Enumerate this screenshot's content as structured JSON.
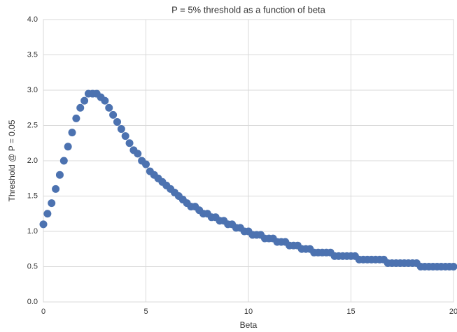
{
  "chart_data": {
    "type": "scatter",
    "title": "P = 5% threshold as a function of beta",
    "x_label": "Beta",
    "y_label": "Threshold @ P = 0.05",
    "color": "#4c72b0",
    "grid": true,
    "x": [
      0,
      0.2,
      0.4,
      0.6,
      0.8,
      1,
      1.2,
      1.4,
      1.6,
      1.8,
      2,
      2.2,
      2.4,
      2.6,
      2.8,
      3,
      3.2,
      3.4,
      3.6,
      3.8,
      4,
      4.2,
      4.4,
      4.6,
      4.8,
      5,
      5.2,
      5.4,
      5.6,
      5.8,
      6,
      6.2,
      6.4,
      6.6,
      6.8,
      7,
      7.2,
      7.4,
      7.6,
      7.8,
      8,
      8.2,
      8.4,
      8.6,
      8.8,
      9,
      9.2,
      9.4,
      9.6,
      9.8,
      10,
      10.2,
      10.4,
      10.6,
      10.8,
      11,
      11.2,
      11.4,
      11.6,
      11.8,
      12,
      12.2,
      12.4,
      12.6,
      12.8,
      13,
      13.2,
      13.4,
      13.6,
      13.8,
      14,
      14.2,
      14.4,
      14.6,
      14.8,
      15,
      15.2,
      15.4,
      15.6,
      15.8,
      16,
      16.2,
      16.4,
      16.6,
      16.8,
      17,
      17.2,
      17.4,
      17.6,
      17.8,
      18,
      18.2,
      18.4,
      18.6,
      18.8,
      19,
      19.2,
      19.4,
      19.6,
      19.8,
      20
    ],
    "values": [
      1.1,
      1.25,
      1.4,
      1.6,
      1.8,
      2.0,
      2.2,
      2.4,
      2.6,
      2.75,
      2.85,
      2.95,
      2.95,
      2.95,
      2.9,
      2.85,
      2.75,
      2.65,
      2.55,
      2.45,
      2.35,
      2.25,
      2.15,
      2.1,
      2.0,
      1.95,
      1.85,
      1.8,
      1.75,
      1.7,
      1.65,
      1.6,
      1.55,
      1.5,
      1.45,
      1.4,
      1.35,
      1.35,
      1.3,
      1.25,
      1.25,
      1.2,
      1.2,
      1.15,
      1.15,
      1.1,
      1.1,
      1.05,
      1.05,
      1.0,
      1.0,
      0.95,
      0.95,
      0.95,
      0.9,
      0.9,
      0.9,
      0.85,
      0.85,
      0.85,
      0.8,
      0.8,
      0.8,
      0.75,
      0.75,
      0.75,
      0.7,
      0.7,
      0.7,
      0.7,
      0.7,
      0.65,
      0.65,
      0.65,
      0.65,
      0.65,
      0.65,
      0.6,
      0.6,
      0.6,
      0.6,
      0.6,
      0.6,
      0.6,
      0.55,
      0.55,
      0.55,
      0.55,
      0.55,
      0.55,
      0.55,
      0.55,
      0.5,
      0.5,
      0.5,
      0.5,
      0.5,
      0.5,
      0.5,
      0.5,
      0.5
    ],
    "xlim": [
      0,
      20
    ],
    "xticks": [
      0,
      5,
      10,
      15,
      20
    ],
    "ylim": [
      0,
      4
    ],
    "yticks": [
      {
        "value": 0,
        "label": "0.0"
      },
      {
        "value": 0.5,
        "label": "0.5"
      },
      {
        "value": 1,
        "label": "1.0"
      },
      {
        "value": 1.5,
        "label": "1.5"
      },
      {
        "value": 2,
        "label": "2.0"
      },
      {
        "value": 2.5,
        "label": "2.5"
      },
      {
        "value": 3,
        "label": "3.0"
      },
      {
        "value": 3.5,
        "label": "3.5"
      },
      {
        "value": 4,
        "label": "4.0"
      }
    ]
  }
}
